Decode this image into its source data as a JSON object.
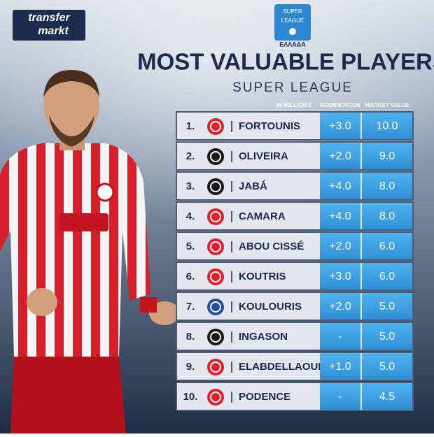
{
  "header": {
    "brand_top": "transfer",
    "brand_bottom": "markt",
    "league_logo_top": "SUPER",
    "league_logo_mid": "LEAGUE",
    "league_logo_bottom": "ΕΛΛΑΔΑ",
    "title": "MOST VALUABLE PLAYERS",
    "subtitle": "SUPER LEAGUE"
  },
  "table": {
    "columns": [
      "IN MILLION €",
      "MODIFICATION",
      "MARKET VALUE"
    ],
    "rows": [
      {
        "rank": "1.",
        "name": "FORTOUNIS",
        "modification": "+3.0",
        "value": "10.0",
        "badge_color": "#e2202b"
      },
      {
        "rank": "2.",
        "name": "OLIVEIRA",
        "modification": "+2.0",
        "value": "9.0",
        "badge_color": "#1a1a1a"
      },
      {
        "rank": "3.",
        "name": "JABÁ",
        "modification": "+4.0",
        "value": "8.0",
        "badge_color": "#1a1a1a"
      },
      {
        "rank": "4.",
        "name": "CAMARA",
        "modification": "+4.0",
        "value": "8.0",
        "badge_color": "#e2202b"
      },
      {
        "rank": "5.",
        "name": "ABOU CISSÉ",
        "modification": "+2.0",
        "value": "6.0",
        "badge_color": "#e2202b"
      },
      {
        "rank": "6.",
        "name": "KOUTRIS",
        "modification": "+3.0",
        "value": "6.0",
        "badge_color": "#e2202b"
      },
      {
        "rank": "7.",
        "name": "KOULOURIS",
        "modification": "+2.0",
        "value": "5.0",
        "badge_color": "#1f4fa0"
      },
      {
        "rank": "8.",
        "name": "INGASON",
        "modification": "-",
        "value": "5.0",
        "badge_color": "#1a1a1a"
      },
      {
        "rank": "9.",
        "name": "ELABDELLAOUI",
        "modification": "+1.0",
        "value": "5.0",
        "badge_color": "#e2202b"
      },
      {
        "rank": "10.",
        "name": "PODENCE",
        "modification": "-",
        "value": "4.5",
        "badge_color": "#e2202b"
      }
    ]
  }
}
